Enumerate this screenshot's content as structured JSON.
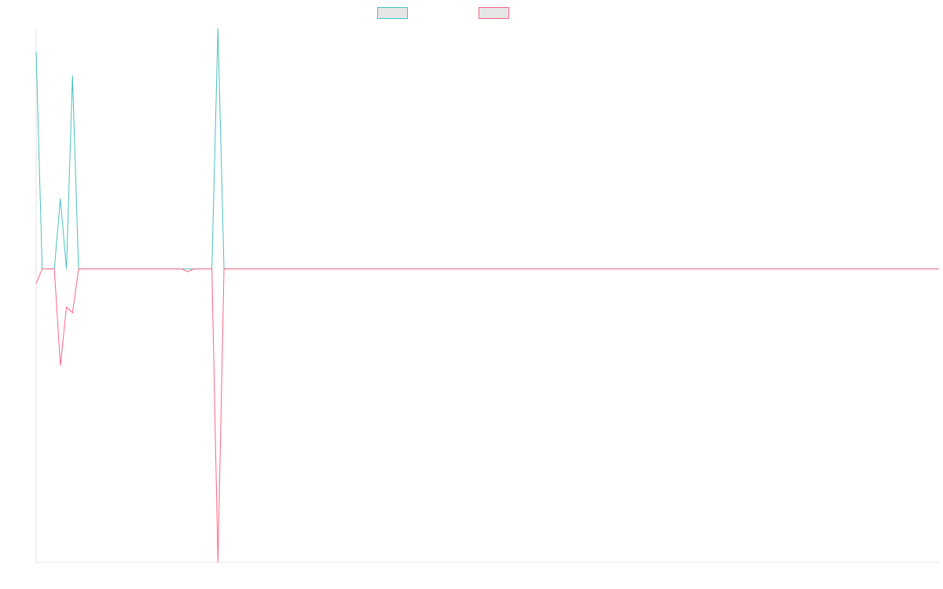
{
  "chart_data": {
    "type": "line",
    "title": "",
    "xlabel": "",
    "ylabel": "",
    "x": [
      0,
      1,
      2,
      3,
      4,
      5,
      6,
      7,
      8,
      9,
      10,
      11,
      12,
      13,
      14,
      15,
      16,
      17,
      18,
      19,
      20,
      21,
      22,
      23,
      24,
      25,
      26,
      27,
      28,
      29,
      30,
      31,
      32,
      33,
      34,
      35,
      36,
      37,
      38,
      39,
      40,
      41,
      42,
      43,
      44,
      45,
      46,
      47,
      48,
      49,
      50,
      51,
      52,
      53,
      54,
      55,
      56,
      57,
      58,
      59,
      60,
      61,
      62,
      63,
      64,
      65,
      66,
      67,
      68,
      69,
      70,
      71,
      72,
      73,
      74,
      75,
      76,
      77,
      78,
      79,
      80,
      81,
      82,
      83,
      84,
      85,
      86,
      87,
      88,
      89,
      90,
      91,
      92,
      93,
      94,
      95,
      96,
      97,
      98,
      99,
      100,
      101,
      102,
      103,
      104,
      105,
      106,
      107,
      108,
      109,
      110,
      111,
      112,
      113,
      114,
      115,
      116,
      117,
      118,
      119,
      120,
      121,
      122,
      123,
      124,
      125,
      126,
      127,
      128,
      129,
      130,
      131,
      132,
      133,
      134,
      135,
      136,
      137,
      138,
      139,
      140,
      141,
      142,
      143,
      144,
      145,
      146,
      147,
      148,
      149
    ],
    "ylim": [
      -100,
      82
    ],
    "grid": false,
    "legend_position": "top",
    "series": [
      {
        "name": "",
        "color": "#4bc0c0",
        "values": [
          74,
          0,
          0,
          0,
          24,
          0,
          66,
          0,
          0,
          0,
          0,
          0,
          0,
          0,
          0,
          0,
          0,
          0,
          0,
          0,
          0,
          0,
          0,
          0,
          0,
          0,
          0,
          0,
          0,
          0,
          82,
          0,
          0,
          0,
          0,
          0,
          0,
          0,
          0,
          0,
          0,
          0,
          0,
          0,
          0,
          0,
          0,
          0,
          0,
          0,
          0,
          0,
          0,
          0,
          0,
          0,
          0,
          0,
          0,
          0,
          0,
          0,
          0,
          0,
          0,
          0,
          0,
          0,
          0,
          0,
          0,
          0,
          0,
          0,
          0,
          0,
          0,
          0,
          0,
          0,
          0,
          0,
          0,
          0,
          0,
          0,
          0,
          0,
          0,
          0,
          0,
          0,
          0,
          0,
          0,
          0,
          0,
          0,
          0,
          0,
          0,
          0,
          0,
          0,
          0,
          0,
          0,
          0,
          0,
          0,
          0,
          0,
          0,
          0,
          0,
          0,
          0,
          0,
          0,
          0,
          0,
          0,
          0,
          0,
          0,
          0,
          0,
          0,
          0,
          0,
          0,
          0,
          0,
          0,
          0,
          0,
          0,
          0,
          0,
          0,
          0,
          0,
          0,
          0,
          0,
          0,
          0,
          0,
          0,
          0
        ]
      },
      {
        "name": "",
        "color": "#ff6384",
        "values": [
          -5,
          0,
          0,
          0,
          -33,
          -13,
          -15,
          0,
          0,
          0,
          0,
          0,
          0,
          0,
          0,
          0,
          0,
          0,
          0,
          0,
          0,
          0,
          0,
          0,
          0,
          -1,
          0,
          0,
          0,
          0,
          -100,
          0,
          0,
          0,
          0,
          0,
          0,
          0,
          0,
          0,
          0,
          0,
          0,
          0,
          0,
          0,
          0,
          0,
          0,
          0,
          0,
          0,
          0,
          0,
          0,
          0,
          0,
          0,
          0,
          0,
          0,
          0,
          0,
          0,
          0,
          0,
          0,
          0,
          0,
          0,
          0,
          0,
          0,
          0,
          0,
          0,
          0,
          0,
          0,
          0,
          0,
          0,
          0,
          0,
          0,
          0,
          0,
          0,
          0,
          0,
          0,
          0,
          0,
          0,
          0,
          0,
          0,
          0,
          0,
          0,
          0,
          0,
          0,
          0,
          0,
          0,
          0,
          0,
          0,
          0,
          0,
          0,
          0,
          0,
          0,
          0,
          0,
          0,
          0,
          0,
          0,
          0,
          0,
          0,
          0,
          0,
          0,
          0,
          0,
          0,
          0,
          0,
          0,
          0,
          0,
          0,
          0,
          0,
          0,
          0,
          0,
          0,
          0,
          0,
          0,
          0,
          0,
          0,
          0,
          0
        ]
      }
    ]
  }
}
